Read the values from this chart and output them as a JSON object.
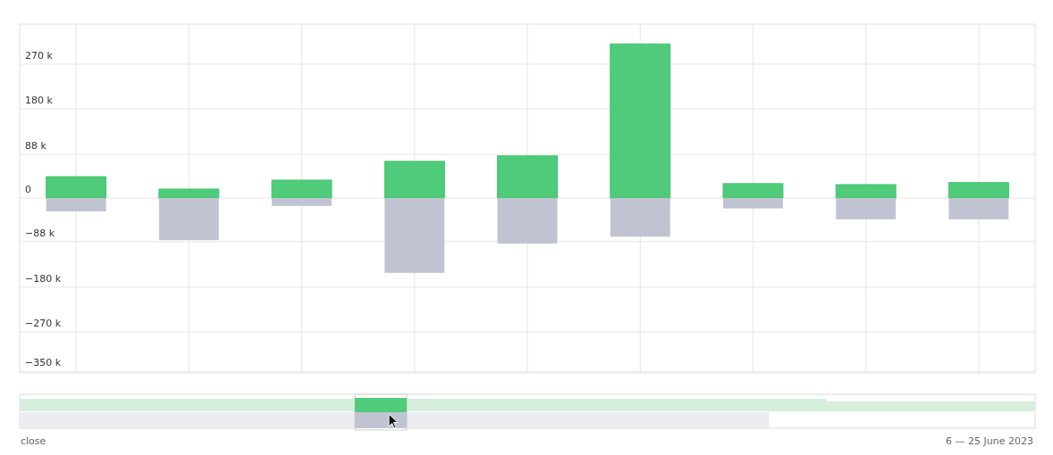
{
  "chart_data": {
    "type": "bar",
    "stacked": true,
    "categories": [
      null,
      null,
      null,
      null,
      null,
      null,
      null,
      null,
      null
    ],
    "series": [
      {
        "color": "#50cb7a",
        "values": [
          43000,
          18000,
          36000,
          74000,
          85000,
          311000,
          29000,
          27000,
          31000
        ]
      },
      {
        "color": "#c0c4d2",
        "values": [
          -27000,
          -85000,
          -16000,
          -151000,
          -92000,
          -78000,
          -21000,
          -43000,
          -43000
        ]
      }
    ],
    "ylim": [
      -353000,
      351000
    ],
    "yticks": [
      {
        "value": 270000,
        "label": "270 k"
      },
      {
        "value": 180000,
        "label": "180 k"
      },
      {
        "value": 88000,
        "label": "88 k"
      },
      0,
      {
        "value": -88000,
        "label": "−88 k"
      },
      {
        "value": -180000,
        "label": "−180 k"
      },
      {
        "value": -270000,
        "label": "−270 k"
      },
      {
        "value": -350000,
        "label": "−350 k"
      }
    ],
    "grid": true,
    "annotations": [
      "close",
      "6 — 25 June 2023"
    ]
  }
}
